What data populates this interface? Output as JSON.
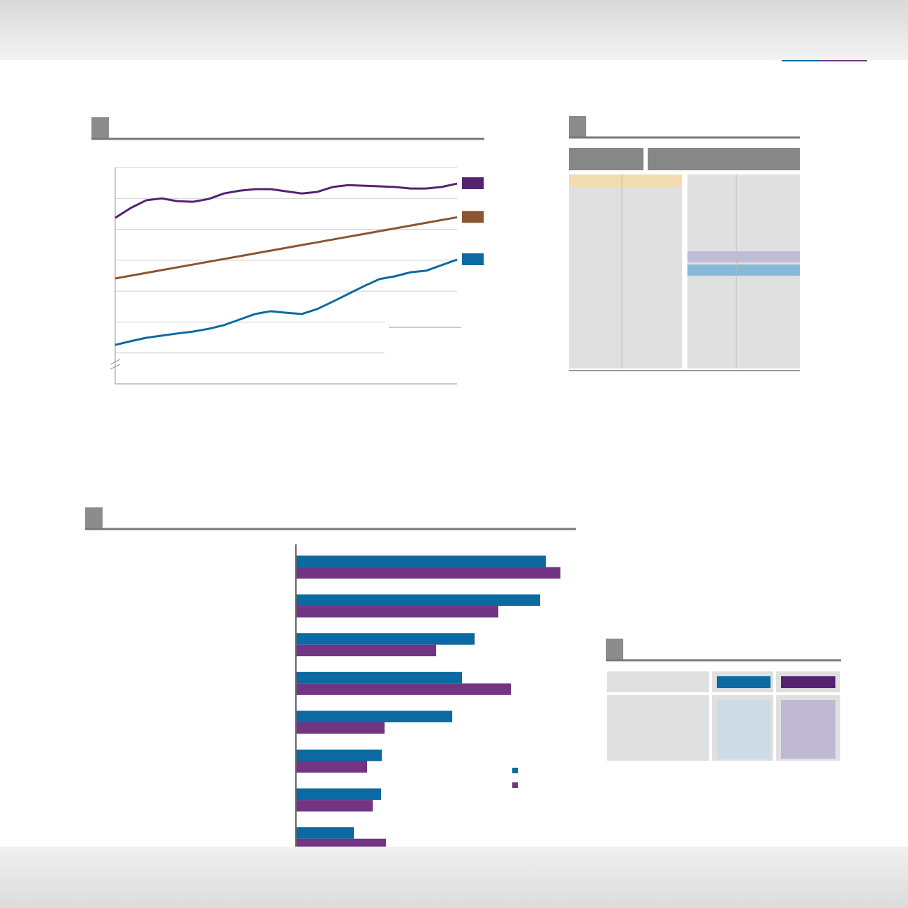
{
  "chart_data": [
    {
      "type": "line",
      "x": [
        0,
        1,
        2,
        3,
        4,
        5,
        6,
        7,
        8,
        9,
        10,
        11,
        12,
        13,
        14,
        15,
        16,
        17,
        18,
        19,
        20,
        21,
        22
      ],
      "xlim": [
        0,
        22
      ],
      "ylim": [
        0,
        7
      ],
      "yticks": [
        1,
        2,
        3,
        4,
        5,
        6,
        7
      ],
      "grid": true,
      "series": [
        {
          "color": "#55226f",
          "values": [
            5.37,
            5.69,
            5.94,
            6.0,
            5.91,
            5.89,
            5.98,
            6.16,
            6.25,
            6.3,
            6.3,
            6.23,
            6.16,
            6.21,
            6.37,
            6.43,
            6.41,
            6.39,
            6.37,
            6.32,
            6.32,
            6.37,
            6.48
          ]
        },
        {
          "color": "#8a5530",
          "values": [
            3.41,
            3.5,
            3.59,
            3.68,
            3.77,
            3.86,
            3.95,
            4.04,
            4.13,
            4.22,
            4.31,
            4.4,
            4.49,
            4.58,
            4.67,
            4.76,
            4.85,
            4.94,
            5.03,
            5.12,
            5.21,
            5.3,
            5.39
          ]
        },
        {
          "color": "#0a6aa1",
          "values": [
            1.26,
            1.38,
            1.49,
            1.56,
            1.63,
            1.69,
            1.78,
            1.9,
            2.08,
            2.26,
            2.35,
            2.3,
            2.26,
            2.42,
            2.66,
            2.91,
            3.16,
            3.39,
            3.48,
            3.61,
            3.66,
            3.84,
            4.02
          ]
        }
      ]
    },
    {
      "type": "hbar",
      "categories": [
        null,
        null,
        null,
        null,
        null,
        null,
        null,
        null
      ],
      "xlim": [
        0,
        400
      ],
      "series": [
        {
          "color": "#0a6aa1",
          "values": [
            357,
            349,
            255,
            237,
            223,
            122,
            121,
            82
          ]
        },
        {
          "color": "#713583",
          "values": [
            378,
            289,
            200,
            307,
            126,
            101,
            109,
            128
          ]
        }
      ]
    }
  ]
}
